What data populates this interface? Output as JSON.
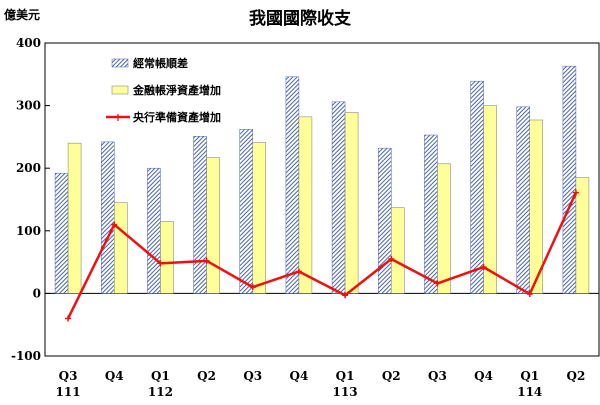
{
  "chart_data": {
    "type": "bar",
    "title": "我國國際收支",
    "unit_label": "億美元",
    "ylim": [
      -100,
      400
    ],
    "yticks": [
      -100,
      0,
      100,
      200,
      300,
      400
    ],
    "grid": false,
    "legend_position": "top-left",
    "categories": [
      "Q3",
      "Q4",
      "Q1",
      "Q2",
      "Q3",
      "Q4",
      "Q1",
      "Q2",
      "Q3",
      "Q4",
      "Q1",
      "Q2"
    ],
    "year_labels": [
      "111",
      "",
      "112",
      "",
      "",
      "",
      "113",
      "",
      "",
      "",
      "114",
      ""
    ],
    "series": [
      {
        "name": "經常帳順差",
        "kind": "bar",
        "style": "hatched-blue",
        "color": "#4a64b4",
        "values": [
          192,
          242,
          200,
          251,
          262,
          346,
          306,
          232,
          253,
          339,
          298,
          363
        ]
      },
      {
        "name": "金融帳淨資產增加",
        "kind": "bar",
        "style": "solid-yellow",
        "color": "#ffff99",
        "values": [
          240,
          145,
          115,
          217,
          241,
          282,
          289,
          137,
          207,
          300,
          277,
          185
        ]
      },
      {
        "name": "央行準備資產增加",
        "kind": "line",
        "color": "#ee1111",
        "values": [
          -40,
          110,
          48,
          52,
          10,
          35,
          -3,
          55,
          16,
          42,
          -1,
          161
        ]
      }
    ]
  }
}
